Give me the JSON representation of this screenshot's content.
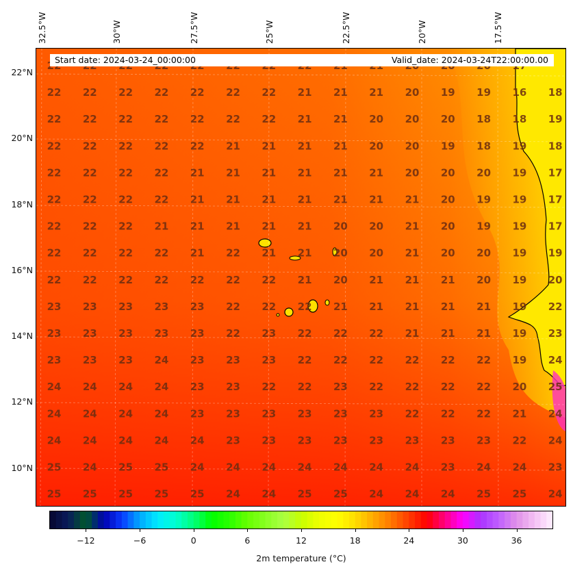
{
  "map": {
    "start_date": "Start date: 2024-03-24_00:00:00",
    "valid_date": "Valid_date: 2024-03-24T22:00:00.00",
    "lon_labels": [
      "32.5°W",
      "30°W",
      "27.5°W",
      "25°W",
      "22.5°W",
      "20°W",
      "17.5°W"
    ],
    "lat_labels": [
      "22°N",
      "20°N",
      "18°N",
      "16°N",
      "14°N",
      "12°N",
      "10°N"
    ],
    "value_color": "#6b2d10",
    "values": [
      [
        22,
        22,
        22,
        22,
        22,
        22,
        22,
        22,
        21,
        21,
        20,
        20,
        20,
        17
      ],
      [
        22,
        22,
        22,
        22,
        22,
        22,
        22,
        21,
        21,
        21,
        20,
        19,
        19,
        16,
        18
      ],
      [
        22,
        22,
        22,
        22,
        22,
        22,
        22,
        21,
        21,
        20,
        20,
        20,
        18,
        18,
        19
      ],
      [
        22,
        22,
        22,
        22,
        22,
        21,
        21,
        21,
        21,
        20,
        20,
        19,
        18,
        19,
        18
      ],
      [
        22,
        22,
        22,
        22,
        21,
        21,
        21,
        21,
        21,
        21,
        20,
        20,
        20,
        19,
        17
      ],
      [
        22,
        22,
        22,
        22,
        21,
        21,
        21,
        21,
        21,
        21,
        21,
        20,
        19,
        19,
        17
      ],
      [
        22,
        22,
        22,
        21,
        21,
        21,
        21,
        21,
        20,
        20,
        21,
        20,
        19,
        19,
        17
      ],
      [
        22,
        22,
        22,
        22,
        21,
        22,
        21,
        21,
        20,
        20,
        21,
        20,
        20,
        19,
        19
      ],
      [
        22,
        22,
        22,
        22,
        22,
        22,
        22,
        21,
        20,
        21,
        21,
        21,
        20,
        19,
        20
      ],
      [
        23,
        23,
        23,
        23,
        23,
        22,
        22,
        22,
        21,
        21,
        21,
        21,
        21,
        19,
        22
      ],
      [
        23,
        23,
        23,
        23,
        23,
        22,
        23,
        22,
        22,
        22,
        21,
        21,
        21,
        19,
        23
      ],
      [
        23,
        23,
        23,
        24,
        23,
        23,
        23,
        22,
        22,
        22,
        22,
        22,
        22,
        19,
        24
      ],
      [
        24,
        24,
        24,
        24,
        23,
        23,
        22,
        22,
        23,
        22,
        22,
        22,
        22,
        20,
        25
      ],
      [
        24,
        24,
        24,
        24,
        23,
        23,
        23,
        23,
        23,
        23,
        22,
        22,
        22,
        21,
        24
      ],
      [
        24,
        24,
        24,
        24,
        24,
        23,
        23,
        23,
        23,
        23,
        23,
        23,
        23,
        22,
        24
      ],
      [
        25,
        24,
        25,
        25,
        24,
        24,
        24,
        24,
        24,
        24,
        24,
        23,
        24,
        24,
        23
      ],
      [
        25,
        25,
        25,
        25,
        25,
        24,
        24,
        25,
        25,
        24,
        24,
        24,
        25,
        25,
        24
      ]
    ]
  },
  "colorbar": {
    "label": "2m temperature (°C)",
    "min": -16,
    "max": 40,
    "ticks": [
      "−12",
      "−6",
      "0",
      "6",
      "12",
      "18",
      "24",
      "30",
      "36"
    ],
    "tick_values": [
      -12,
      -6,
      0,
      6,
      12,
      18,
      24,
      30,
      36
    ],
    "stops": [
      [
        -16,
        "#06072e"
      ],
      [
        -14,
        "#0a1a5c"
      ],
      [
        -12,
        "#005a2a"
      ],
      [
        -10,
        "#0000b0"
      ],
      [
        -8,
        "#0a3aff"
      ],
      [
        -6,
        "#00a8ff"
      ],
      [
        -4,
        "#00eaff"
      ],
      [
        -2,
        "#00ffd0"
      ],
      [
        0,
        "#00ff7a"
      ],
      [
        2,
        "#00ff00"
      ],
      [
        4,
        "#2aff00"
      ],
      [
        6,
        "#66ff00"
      ],
      [
        8,
        "#88ff22"
      ],
      [
        10,
        "#aaff44"
      ],
      [
        12,
        "#c8ff00"
      ],
      [
        14,
        "#eeff00"
      ],
      [
        16,
        "#ffff00"
      ],
      [
        18,
        "#ffdd00"
      ],
      [
        20,
        "#ffaa00"
      ],
      [
        22,
        "#ff7800"
      ],
      [
        24,
        "#ff3c00"
      ],
      [
        26,
        "#ff0000"
      ],
      [
        28,
        "#ff0080"
      ],
      [
        30,
        "#ff00ff"
      ],
      [
        32,
        "#aa33ff"
      ],
      [
        34,
        "#c060ff"
      ],
      [
        36,
        "#e090e8"
      ],
      [
        38,
        "#f4c0f4"
      ],
      [
        40,
        "#fff0ff"
      ]
    ]
  }
}
